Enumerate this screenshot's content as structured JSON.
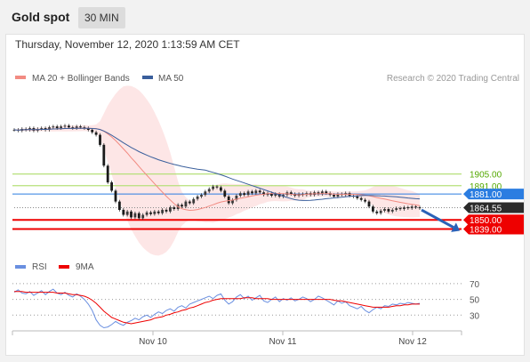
{
  "header": {
    "title": "Gold spot",
    "interval": "30 MIN"
  },
  "datetime": "Thursday, November 12, 2020 1:13:59 AM CET",
  "colors": {
    "ma20": "#f28b82",
    "bollinger_fill": "#fde2e2",
    "ma50": "#3a5f9c",
    "resistance_text": "#53a800",
    "resistance_line": "#b6e07a",
    "support": "#ee0000",
    "pivot": "#2b7de1",
    "last": "#2b2b2b",
    "arrow": "#2a62b8",
    "rsi": "#6a8fe0",
    "rsi_ma": "#ee0000"
  },
  "chart_data": [
    {
      "type": "candlestick",
      "legend": [
        {
          "name": "MA 20 + Bollinger Bands",
          "color": "#f28b82"
        },
        {
          "name": "MA 50",
          "color": "#3a5f9c"
        }
      ],
      "source": "Research © 2020 Trading Central",
      "x_ticks": [
        "Nov 10",
        "Nov 11",
        "Nov 12"
      ],
      "levels": [
        {
          "label": "1905.00",
          "value": 1905.0,
          "kind": "resistance"
        },
        {
          "label": "1891.00",
          "value": 1891.0,
          "kind": "resistance"
        },
        {
          "label": "1881.00",
          "value": 1881.0,
          "kind": "pivot"
        },
        {
          "label": "1864.55",
          "value": 1864.55,
          "kind": "last"
        },
        {
          "label": "1850.00",
          "value": 1850.0,
          "kind": "support"
        },
        {
          "label": "1839.00",
          "value": 1839.0,
          "kind": "support"
        }
      ],
      "ylim": [
        1815,
        1975
      ],
      "close_series": [
        1958,
        1957,
        1959,
        1958,
        1960,
        1957,
        1959,
        1960,
        1958,
        1961,
        1962,
        1960,
        1962,
        1963,
        1961,
        1960,
        1962,
        1961,
        1960,
        1958,
        1955,
        1952,
        1940,
        1915,
        1895,
        1885,
        1872,
        1862,
        1856,
        1860,
        1853,
        1858,
        1852,
        1856,
        1859,
        1857,
        1860,
        1858,
        1862,
        1860,
        1865,
        1863,
        1868,
        1866,
        1872,
        1870,
        1875,
        1878,
        1880,
        1884,
        1887,
        1890,
        1889,
        1885,
        1878,
        1870,
        1874,
        1879,
        1882,
        1880,
        1884,
        1882,
        1885,
        1883,
        1880,
        1882,
        1879,
        1881,
        1878,
        1880,
        1883,
        1881,
        1879,
        1881,
        1880,
        1882,
        1880,
        1883,
        1881,
        1884,
        1882,
        1880,
        1878,
        1881,
        1880,
        1882,
        1879,
        1878,
        1876,
        1874,
        1872,
        1866,
        1860,
        1858,
        1861,
        1863,
        1860,
        1862,
        1864,
        1863,
        1865,
        1864,
        1866,
        1865,
        1864
      ]
    },
    {
      "type": "line",
      "legend": [
        {
          "name": "RSI",
          "color": "#6a8fe0"
        },
        {
          "name": "9MA",
          "color": "#ee0000"
        }
      ],
      "y_ticks": [
        70,
        50,
        30
      ],
      "ylim": [
        10,
        80
      ],
      "rsi_series": [
        59,
        62,
        58,
        57,
        60,
        55,
        58,
        61,
        56,
        60,
        63,
        58,
        56,
        59,
        55,
        53,
        57,
        54,
        50,
        44,
        36,
        24,
        17,
        14,
        15,
        18,
        22,
        19,
        17,
        21,
        23,
        26,
        24,
        28,
        30,
        27,
        31,
        34,
        32,
        36,
        38,
        35,
        40,
        42,
        39,
        44,
        46,
        48,
        50,
        52,
        54,
        51,
        55,
        57,
        49,
        44,
        47,
        53,
        56,
        51,
        54,
        49,
        52,
        55,
        48,
        46,
        50,
        53,
        47,
        51,
        49,
        52,
        48,
        50,
        53,
        51,
        47,
        50,
        54,
        52,
        49,
        46,
        43,
        48,
        45,
        47,
        42,
        40,
        38,
        41,
        36,
        33,
        37,
        40,
        38,
        42,
        41,
        44,
        43,
        45,
        44,
        46,
        45,
        44,
        45
      ],
      "ma9_series": [
        60,
        60,
        60,
        59,
        59,
        59,
        59,
        59,
        59,
        59,
        59,
        58,
        58,
        58,
        57,
        56,
        56,
        55,
        54,
        52,
        49,
        45,
        40,
        35,
        31,
        27,
        25,
        23,
        21,
        20,
        19,
        20,
        21,
        22,
        23,
        24,
        26,
        27,
        28,
        30,
        31,
        33,
        34,
        36,
        37,
        39,
        40,
        42,
        44,
        46,
        47,
        49,
        50,
        51,
        51,
        51,
        51,
        51,
        51,
        52,
        52,
        52,
        51,
        51,
        51,
        51,
        50,
        50,
        50,
        50,
        50,
        50,
        50,
        50,
        50,
        50,
        50,
        50,
        50,
        50,
        50,
        50,
        49,
        48,
        48,
        47,
        46,
        45,
        44,
        43,
        42,
        41,
        40,
        40,
        40,
        40,
        40,
        41,
        42,
        42,
        43,
        43,
        44,
        44,
        44
      ]
    }
  ]
}
